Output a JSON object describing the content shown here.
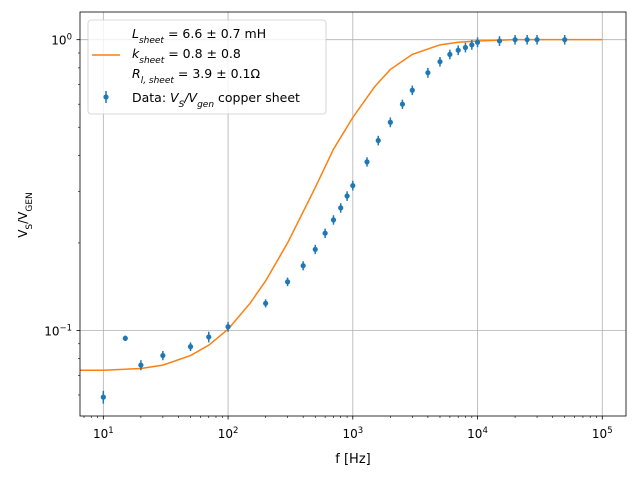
{
  "chart_data": {
    "type": "scatter",
    "xscale": "log",
    "yscale": "log",
    "xlim": [
      6.5,
      155000
    ],
    "ylim": [
      0.0508,
      1.245
    ],
    "xlabel": "f [Hz]",
    "ylabel": "V_S/V_GEN",
    "grid": true,
    "legend_position": "upper left",
    "x_ticks": [
      {
        "value": 10,
        "base": "10",
        "exp": "1"
      },
      {
        "value": 100,
        "base": "10",
        "exp": "2"
      },
      {
        "value": 1000,
        "base": "10",
        "exp": "3"
      },
      {
        "value": 10000,
        "base": "10",
        "exp": "4"
      },
      {
        "value": 100000,
        "base": "10",
        "exp": "5"
      }
    ],
    "y_ticks": [
      {
        "value": 0.1,
        "base": "10",
        "exp": "−1"
      },
      {
        "value": 1,
        "base": "10",
        "exp": "0"
      }
    ],
    "fit": {
      "name_lines": [
        {
          "symbol": "L",
          "sub": "sheet",
          "text": " = 6.6 ± 0.7 mH"
        },
        {
          "symbol": "k",
          "sub": "sheet",
          "text": " = 0.8 ± 0.8"
        },
        {
          "symbol": "R",
          "sub": "l, sheet",
          "text": " = 3.9 ± 0.1Ω"
        }
      ],
      "color": "#ff7f0e",
      "points": [
        [
          6.5,
          0.073
        ],
        [
          10,
          0.073
        ],
        [
          20,
          0.074
        ],
        [
          30,
          0.076
        ],
        [
          50,
          0.082
        ],
        [
          70,
          0.089
        ],
        [
          100,
          0.101
        ],
        [
          150,
          0.124
        ],
        [
          200,
          0.148
        ],
        [
          300,
          0.2
        ],
        [
          500,
          0.31
        ],
        [
          700,
          0.42
        ],
        [
          1000,
          0.54
        ],
        [
          1500,
          0.69
        ],
        [
          2000,
          0.79
        ],
        [
          3000,
          0.89
        ],
        [
          5000,
          0.96
        ],
        [
          7000,
          0.98
        ],
        [
          10000,
          0.99
        ],
        [
          20000,
          1.0
        ],
        [
          100000,
          1.0
        ]
      ]
    },
    "data_series": {
      "name_prefix": "Data: ",
      "name_math": [
        {
          "symbol": "V",
          "sub": "S"
        },
        {
          "symbol": "/V",
          "sub": "gen"
        }
      ],
      "name_suffix": " copper sheet",
      "color": "#1f77b4",
      "points": [
        {
          "x": 10,
          "y": 0.059,
          "yerr": 0.003
        },
        {
          "x": 15,
          "y": 0.094,
          "yerr": 0.002
        },
        {
          "x": 20,
          "y": 0.076,
          "yerr": 0.003
        },
        {
          "x": 30,
          "y": 0.082,
          "yerr": 0.003
        },
        {
          "x": 50,
          "y": 0.088,
          "yerr": 0.003
        },
        {
          "x": 70,
          "y": 0.095,
          "yerr": 0.004
        },
        {
          "x": 100,
          "y": 0.103,
          "yerr": 0.004
        },
        {
          "x": 200,
          "y": 0.124,
          "yerr": 0.004
        },
        {
          "x": 300,
          "y": 0.147,
          "yerr": 0.005
        },
        {
          "x": 400,
          "y": 0.167,
          "yerr": 0.006
        },
        {
          "x": 500,
          "y": 0.19,
          "yerr": 0.007
        },
        {
          "x": 600,
          "y": 0.216,
          "yerr": 0.008
        },
        {
          "x": 700,
          "y": 0.24,
          "yerr": 0.009
        },
        {
          "x": 800,
          "y": 0.264,
          "yerr": 0.01
        },
        {
          "x": 900,
          "y": 0.29,
          "yerr": 0.011
        },
        {
          "x": 1000,
          "y": 0.315,
          "yerr": 0.012
        },
        {
          "x": 1300,
          "y": 0.38,
          "yerr": 0.014
        },
        {
          "x": 1600,
          "y": 0.45,
          "yerr": 0.017
        },
        {
          "x": 2000,
          "y": 0.52,
          "yerr": 0.02
        },
        {
          "x": 2500,
          "y": 0.6,
          "yerr": 0.022
        },
        {
          "x": 3000,
          "y": 0.67,
          "yerr": 0.025
        },
        {
          "x": 4000,
          "y": 0.77,
          "yerr": 0.03
        },
        {
          "x": 5000,
          "y": 0.84,
          "yerr": 0.032
        },
        {
          "x": 6000,
          "y": 0.89,
          "yerr": 0.034
        },
        {
          "x": 7000,
          "y": 0.92,
          "yerr": 0.035
        },
        {
          "x": 8000,
          "y": 0.94,
          "yerr": 0.036
        },
        {
          "x": 9000,
          "y": 0.96,
          "yerr": 0.037
        },
        {
          "x": 10000,
          "y": 0.98,
          "yerr": 0.038
        },
        {
          "x": 15000,
          "y": 0.99,
          "yerr": 0.038
        },
        {
          "x": 20000,
          "y": 1.0,
          "yerr": 0.038
        },
        {
          "x": 25000,
          "y": 1.0,
          "yerr": 0.038
        },
        {
          "x": 30000,
          "y": 1.0,
          "yerr": 0.038
        },
        {
          "x": 50000,
          "y": 1.0,
          "yerr": 0.038
        }
      ]
    }
  }
}
